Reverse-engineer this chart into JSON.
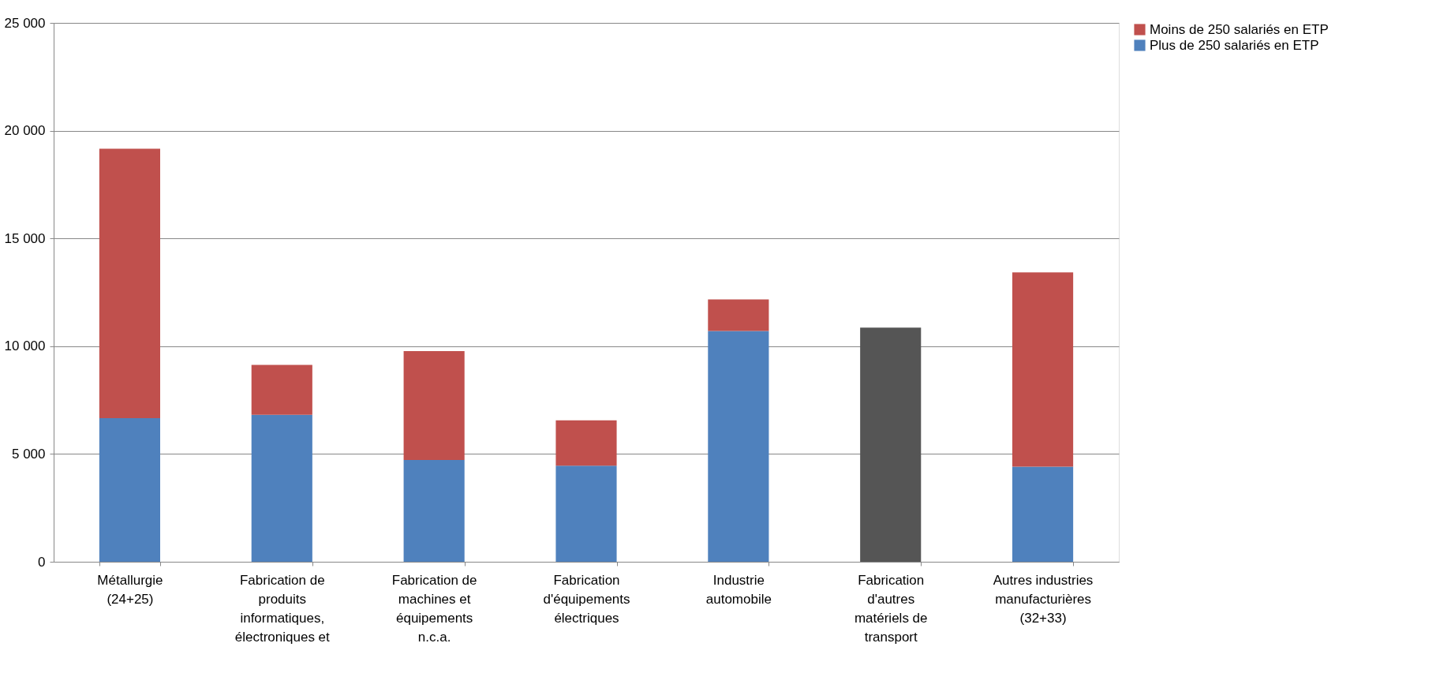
{
  "chart_data": {
    "type": "bar",
    "stacked": true,
    "categories": [
      "Métallurgie (24+25)",
      "Fabrication de produits informatiques, électroniques et",
      "Fabrication de machines et équipements n.c.a.",
      "Fabrication d'équipements électriques",
      "Industrie automobile",
      "Fabrication d'autres matériels de transport",
      "Autres industries manufacturières (32+33)"
    ],
    "series": [
      {
        "name": "Plus de 250 salariés en ETP",
        "color": "#4f81bd",
        "values": [
          6660,
          6820,
          4720,
          4460,
          10710,
          null,
          4410
        ]
      },
      {
        "name": "Moins de 250 salariés en ETP",
        "color": "#c0504d",
        "values": [
          12500,
          2310,
          5050,
          2100,
          1460,
          null,
          9010
        ]
      },
      {
        "color": "#555555",
        "values": [
          null,
          null,
          null,
          null,
          null,
          10860,
          null
        ]
      }
    ],
    "ylim": [
      0,
      25000
    ],
    "yticks": [
      0,
      {
        "value": 5000,
        "label": "5 000"
      },
      {
        "value": 10000,
        "label": "10 000"
      },
      {
        "value": 15000,
        "label": "15 000"
      },
      {
        "value": 20000,
        "label": "20 000"
      },
      {
        "value": 25000,
        "label": "25 000"
      }
    ],
    "grid": "y",
    "legend": "right"
  }
}
